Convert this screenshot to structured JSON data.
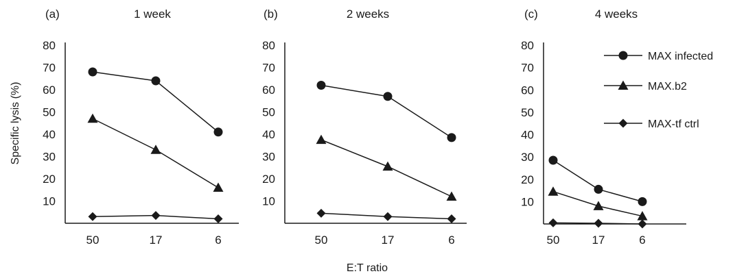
{
  "figure": {
    "ylabel": "Specific lysis (%)",
    "xlabel": "E:T ratio"
  },
  "legend": {
    "placement": "top-right, inside panel (c)",
    "entries": [
      {
        "label": "MAX infected",
        "marker": "circle"
      },
      {
        "label": "MAX.b2",
        "marker": "triangle"
      },
      {
        "label": "MAX-tf ctrl",
        "marker": "diamond"
      }
    ]
  },
  "chart_data": [
    {
      "type": "line",
      "panel_label": "(a)",
      "title": "1 week",
      "categories": [
        "50",
        "17",
        "6"
      ],
      "yticks": [
        "10",
        "20",
        "30",
        "40",
        "50",
        "60",
        "70",
        "80"
      ],
      "ylim": [
        0,
        80
      ],
      "grid": false,
      "series": [
        {
          "name": "MAX infected",
          "marker": "circle",
          "values": [
            68,
            64,
            41
          ]
        },
        {
          "name": "MAX.b2",
          "marker": "triangle",
          "values": [
            47,
            33,
            16
          ]
        },
        {
          "name": "MAX-tf ctrl",
          "marker": "diamond",
          "values": [
            3,
            3.5,
            2
          ]
        }
      ]
    },
    {
      "type": "line",
      "panel_label": "(b)",
      "title": "2 weeks",
      "categories": [
        "50",
        "17",
        "6"
      ],
      "yticks": [
        "10",
        "20",
        "30",
        "40",
        "50",
        "60",
        "70",
        "80"
      ],
      "ylim": [
        0,
        80
      ],
      "grid": false,
      "series": [
        {
          "name": "MAX infected",
          "marker": "circle",
          "values": [
            62,
            57,
            38.5
          ]
        },
        {
          "name": "MAX.b2",
          "marker": "triangle",
          "values": [
            37.5,
            25.5,
            12
          ]
        },
        {
          "name": "MAX-tf ctrl",
          "marker": "diamond",
          "values": [
            4.5,
            3,
            2
          ]
        }
      ]
    },
    {
      "type": "line",
      "panel_label": "(c)",
      "title": "4 weeks",
      "categories": [
        "50",
        "17",
        "6"
      ],
      "yticks": [
        "10",
        "20",
        "30",
        "40",
        "50",
        "60",
        "70",
        "80"
      ],
      "ylim": [
        0,
        80
      ],
      "grid": false,
      "series": [
        {
          "name": "MAX infected",
          "marker": "circle",
          "values": [
            28.5,
            15.5,
            10
          ]
        },
        {
          "name": "MAX.b2",
          "marker": "triangle",
          "values": [
            14.5,
            8,
            3.5
          ]
        },
        {
          "name": "MAX-tf ctrl",
          "marker": "diamond",
          "values": [
            0.5,
            0.3,
            0
          ]
        }
      ]
    }
  ]
}
